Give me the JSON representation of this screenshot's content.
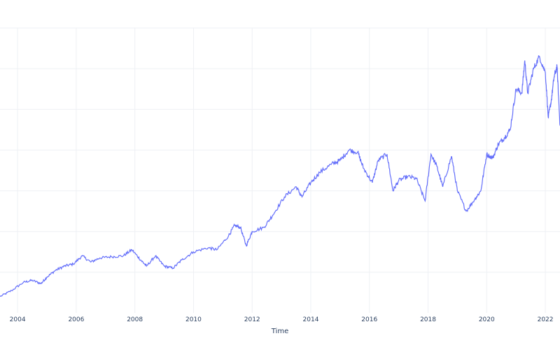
{
  "chart_data": {
    "type": "line",
    "title": "",
    "xlabel": "Time",
    "ylabel": "",
    "grid": true,
    "legend": "none",
    "color": "#636efa",
    "x_ticks": [
      2004,
      2006,
      2008,
      2010,
      2012,
      2014,
      2016,
      2018,
      2020,
      2022
    ],
    "xlim": [
      2003.4,
      2022.5
    ],
    "ylim": [
      0,
      7
    ],
    "y_gridlines": [
      1,
      2,
      3,
      4,
      5,
      6,
      7
    ],
    "series": [
      {
        "name": "",
        "points": [
          [
            2003.4,
            0.4
          ],
          [
            2003.8,
            0.55
          ],
          [
            2004.2,
            0.75
          ],
          [
            2004.5,
            0.8
          ],
          [
            2004.8,
            0.72
          ],
          [
            2005.0,
            0.88
          ],
          [
            2005.3,
            1.05
          ],
          [
            2005.6,
            1.15
          ],
          [
            2005.9,
            1.2
          ],
          [
            2006.2,
            1.4
          ],
          [
            2006.5,
            1.25
          ],
          [
            2006.8,
            1.35
          ],
          [
            2007.2,
            1.38
          ],
          [
            2007.6,
            1.4
          ],
          [
            2007.9,
            1.55
          ],
          [
            2008.2,
            1.3
          ],
          [
            2008.4,
            1.15
          ],
          [
            2008.7,
            1.4
          ],
          [
            2009.0,
            1.15
          ],
          [
            2009.3,
            1.1
          ],
          [
            2009.6,
            1.3
          ],
          [
            2010.0,
            1.5
          ],
          [
            2010.5,
            1.6
          ],
          [
            2010.8,
            1.55
          ],
          [
            2011.2,
            1.9
          ],
          [
            2011.4,
            2.15
          ],
          [
            2011.6,
            2.1
          ],
          [
            2011.8,
            1.65
          ],
          [
            2012.0,
            2.0
          ],
          [
            2012.4,
            2.1
          ],
          [
            2012.7,
            2.4
          ],
          [
            2013.1,
            2.85
          ],
          [
            2013.5,
            3.1
          ],
          [
            2013.7,
            2.85
          ],
          [
            2014.0,
            3.2
          ],
          [
            2014.3,
            3.45
          ],
          [
            2014.7,
            3.65
          ],
          [
            2015.0,
            3.75
          ],
          [
            2015.3,
            4.0
          ],
          [
            2015.6,
            3.95
          ],
          [
            2015.8,
            3.55
          ],
          [
            2016.1,
            3.2
          ],
          [
            2016.3,
            3.75
          ],
          [
            2016.6,
            3.9
          ],
          [
            2016.8,
            3.0
          ],
          [
            2017.0,
            3.25
          ],
          [
            2017.3,
            3.35
          ],
          [
            2017.6,
            3.3
          ],
          [
            2017.9,
            2.75
          ],
          [
            2018.1,
            3.9
          ],
          [
            2018.3,
            3.6
          ],
          [
            2018.5,
            3.1
          ],
          [
            2018.8,
            3.85
          ],
          [
            2019.0,
            3.0
          ],
          [
            2019.3,
            2.5
          ],
          [
            2019.6,
            2.8
          ],
          [
            2019.8,
            3.0
          ],
          [
            2020.0,
            3.9
          ],
          [
            2020.2,
            3.8
          ],
          [
            2020.4,
            4.15
          ],
          [
            2020.6,
            4.3
          ],
          [
            2020.8,
            4.5
          ],
          [
            2021.0,
            5.5
          ],
          [
            2021.2,
            5.4
          ],
          [
            2021.3,
            6.2
          ],
          [
            2021.4,
            5.4
          ],
          [
            2021.6,
            6.0
          ],
          [
            2021.8,
            6.3
          ],
          [
            2022.0,
            5.9
          ],
          [
            2022.1,
            4.8
          ],
          [
            2022.2,
            5.2
          ],
          [
            2022.3,
            5.8
          ],
          [
            2022.4,
            6.05
          ],
          [
            2022.5,
            4.6
          ]
        ]
      }
    ]
  }
}
